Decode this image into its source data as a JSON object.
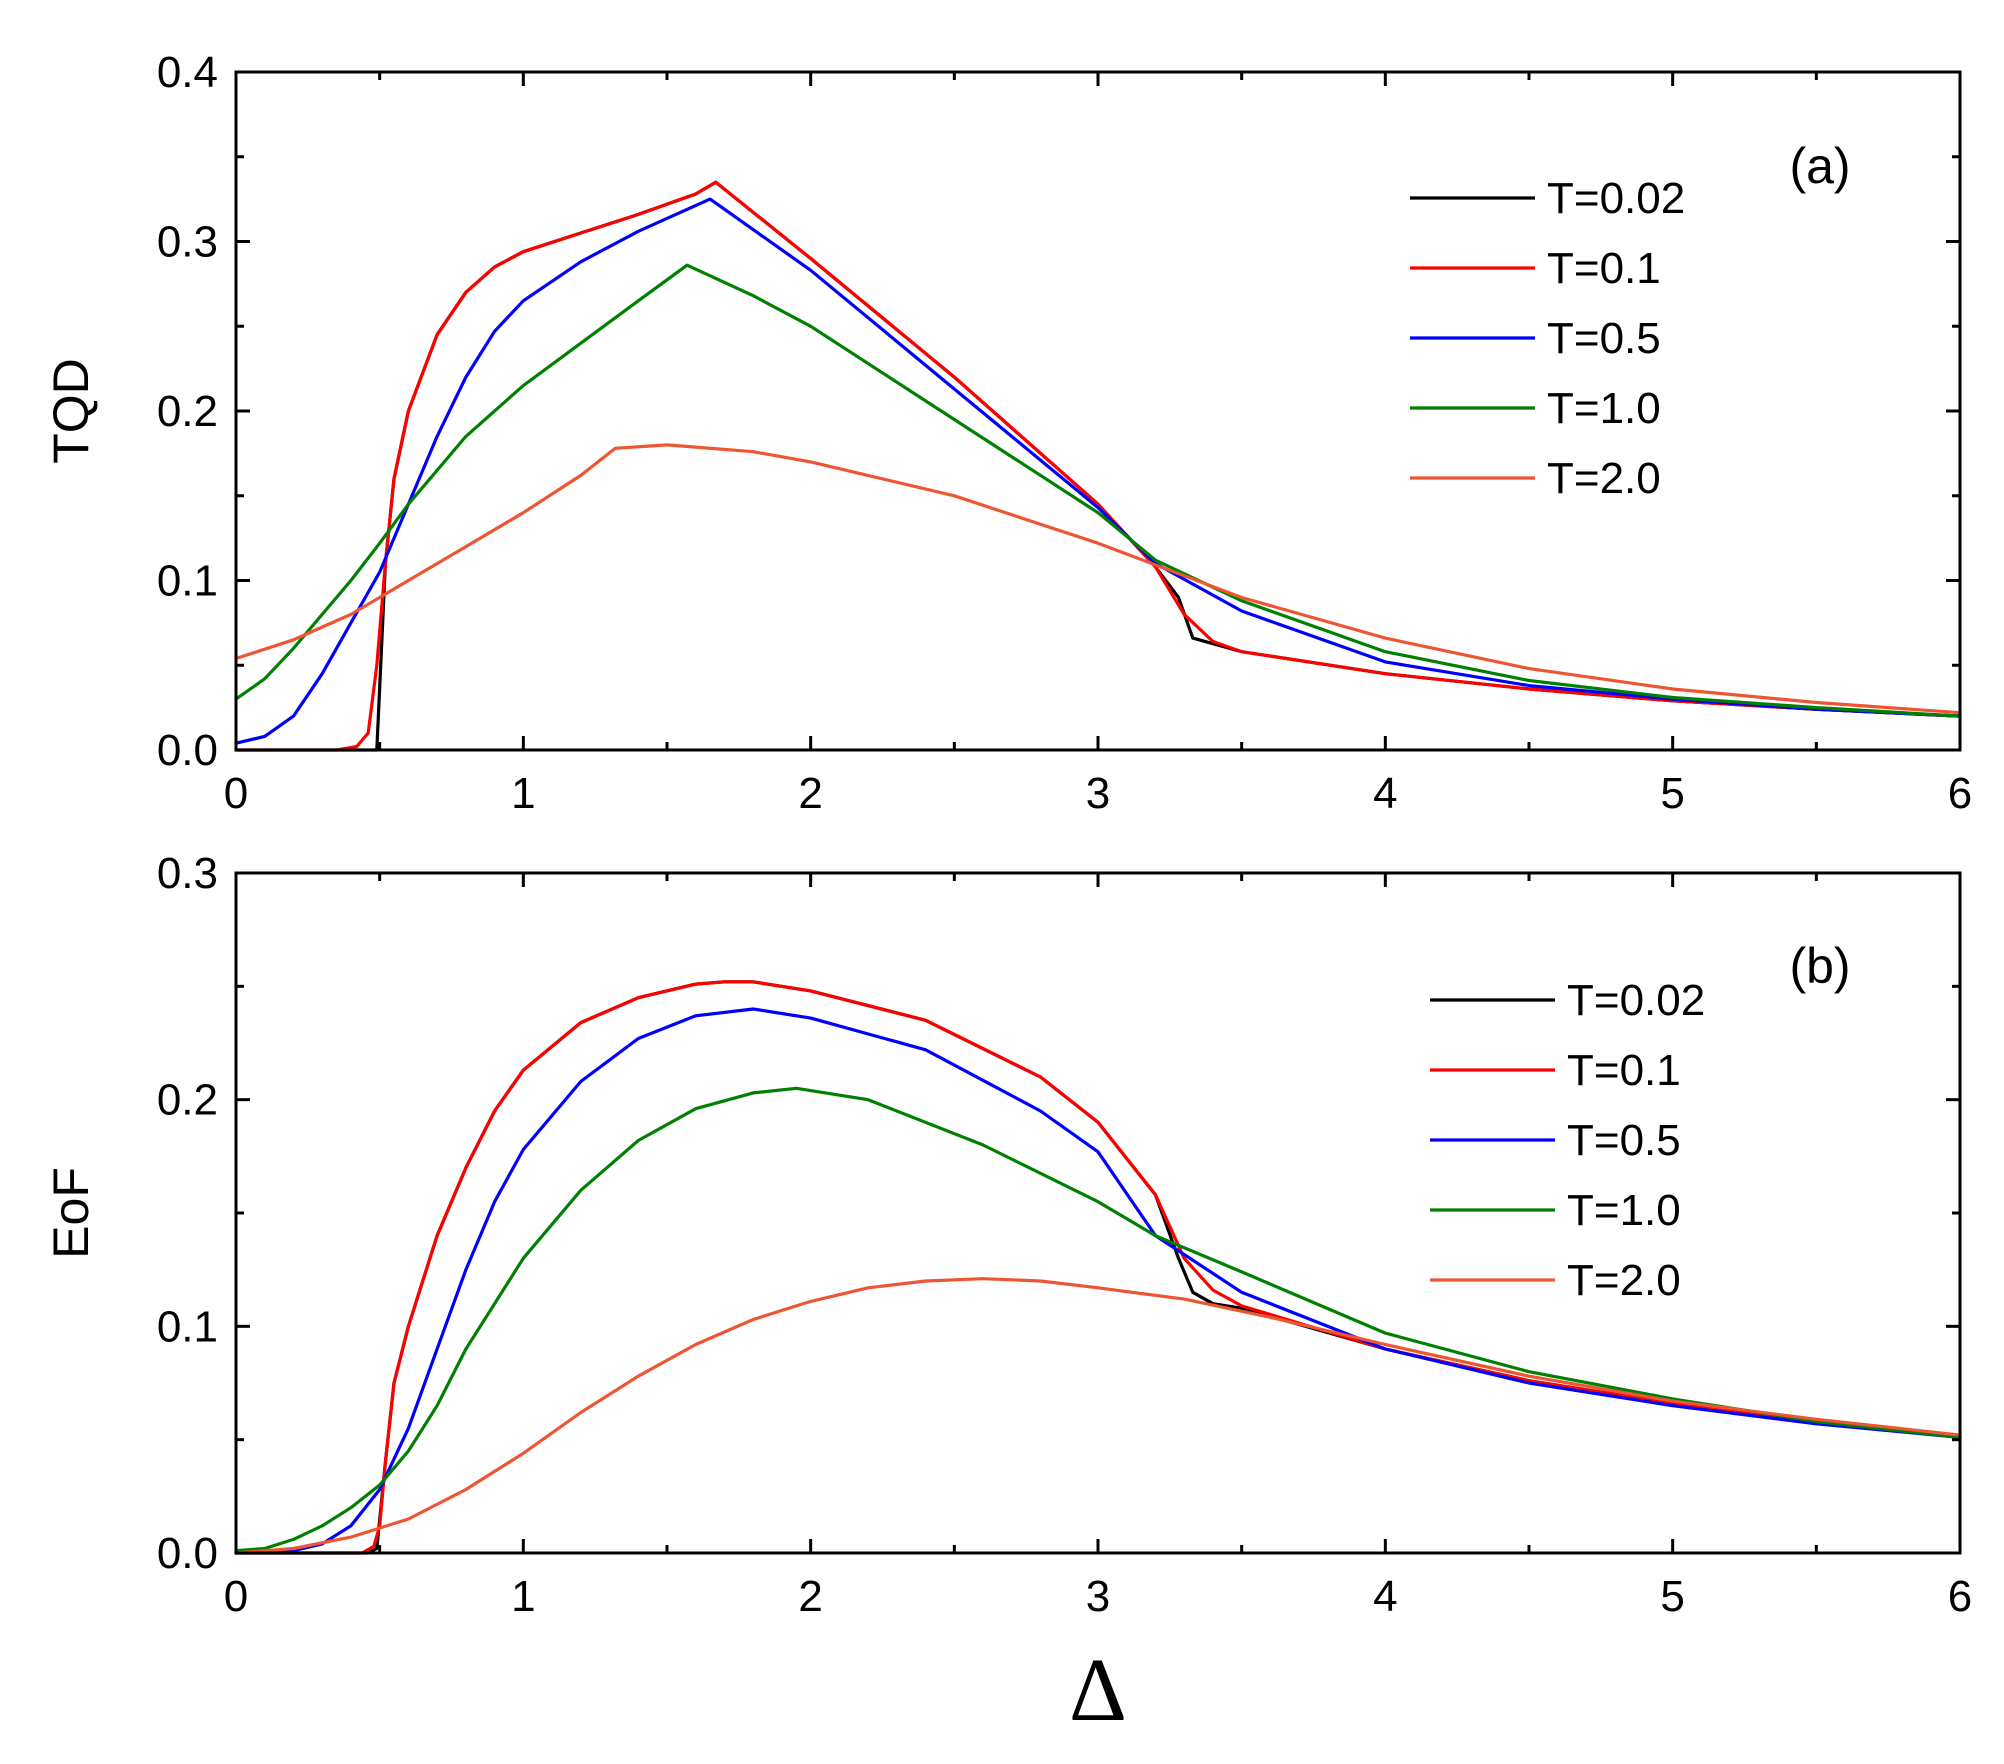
{
  "chart_data": [
    {
      "type": "line",
      "panel_label": "(a)",
      "ylabel": "TQD",
      "xlim": [
        0,
        6
      ],
      "ylim": [
        0,
        0.4
      ],
      "xticks": [
        "0",
        "1",
        "2",
        "3",
        "4",
        "5",
        "6"
      ],
      "yticks": [
        "0.0",
        "0.1",
        "0.2",
        "0.3",
        "0.4"
      ],
      "legend_position": "top-right",
      "series": [
        {
          "name": "T=0.02",
          "color": "#000000",
          "points": [
            [
              0,
              0
            ],
            [
              0.45,
              0
            ],
            [
              0.49,
              0
            ],
            [
              0.52,
              0.11
            ],
            [
              0.55,
              0.16
            ],
            [
              0.6,
              0.2
            ],
            [
              0.7,
              0.245
            ],
            [
              0.8,
              0.27
            ],
            [
              0.9,
              0.285
            ],
            [
              1.0,
              0.294
            ],
            [
              1.2,
              0.305
            ],
            [
              1.4,
              0.316
            ],
            [
              1.6,
              0.328
            ],
            [
              1.67,
              0.335
            ],
            [
              2.0,
              0.29
            ],
            [
              2.5,
              0.22
            ],
            [
              3.0,
              0.145
            ],
            [
              3.2,
              0.108
            ],
            [
              3.28,
              0.09
            ],
            [
              3.33,
              0.066
            ],
            [
              3.5,
              0.058
            ],
            [
              4.0,
              0.045
            ],
            [
              4.5,
              0.036
            ],
            [
              5.0,
              0.029
            ],
            [
              5.5,
              0.024
            ],
            [
              6.0,
              0.02
            ]
          ]
        },
        {
          "name": "T=0.1",
          "color": "#ff0000",
          "points": [
            [
              0,
              0
            ],
            [
              0.35,
              0
            ],
            [
              0.42,
              0.002
            ],
            [
              0.46,
              0.01
            ],
            [
              0.49,
              0.05
            ],
            [
              0.52,
              0.11
            ],
            [
              0.55,
              0.16
            ],
            [
              0.6,
              0.2
            ],
            [
              0.7,
              0.245
            ],
            [
              0.8,
              0.27
            ],
            [
              0.9,
              0.285
            ],
            [
              1.0,
              0.294
            ],
            [
              1.2,
              0.305
            ],
            [
              1.4,
              0.316
            ],
            [
              1.6,
              0.328
            ],
            [
              1.67,
              0.335
            ],
            [
              2.0,
              0.29
            ],
            [
              2.5,
              0.22
            ],
            [
              3.0,
              0.145
            ],
            [
              3.2,
              0.108
            ],
            [
              3.3,
              0.08
            ],
            [
              3.4,
              0.064
            ],
            [
              3.5,
              0.058
            ],
            [
              4.0,
              0.045
            ],
            [
              4.5,
              0.036
            ],
            [
              5.0,
              0.029
            ],
            [
              5.5,
              0.024
            ],
            [
              6.0,
              0.02
            ]
          ]
        },
        {
          "name": "T=0.5",
          "color": "#0000ff",
          "points": [
            [
              0,
              0.004
            ],
            [
              0.1,
              0.008
            ],
            [
              0.2,
              0.02
            ],
            [
              0.3,
              0.045
            ],
            [
              0.4,
              0.075
            ],
            [
              0.5,
              0.105
            ],
            [
              0.6,
              0.145
            ],
            [
              0.7,
              0.185
            ],
            [
              0.8,
              0.22
            ],
            [
              0.9,
              0.247
            ],
            [
              1.0,
              0.265
            ],
            [
              1.2,
              0.288
            ],
            [
              1.4,
              0.306
            ],
            [
              1.65,
              0.325
            ],
            [
              2.0,
              0.283
            ],
            [
              2.5,
              0.213
            ],
            [
              3.0,
              0.143
            ],
            [
              3.2,
              0.11
            ],
            [
              3.5,
              0.082
            ],
            [
              4.0,
              0.052
            ],
            [
              4.5,
              0.038
            ],
            [
              5.0,
              0.03
            ],
            [
              5.5,
              0.024
            ],
            [
              6.0,
              0.02
            ]
          ]
        },
        {
          "name": "T=1.0",
          "color": "#008000",
          "points": [
            [
              0,
              0.03
            ],
            [
              0.1,
              0.042
            ],
            [
              0.2,
              0.06
            ],
            [
              0.3,
              0.08
            ],
            [
              0.4,
              0.1
            ],
            [
              0.5,
              0.122
            ],
            [
              0.6,
              0.145
            ],
            [
              0.8,
              0.185
            ],
            [
              1.0,
              0.215
            ],
            [
              1.2,
              0.24
            ],
            [
              1.4,
              0.265
            ],
            [
              1.57,
              0.286
            ],
            [
              1.8,
              0.268
            ],
            [
              2.0,
              0.25
            ],
            [
              2.5,
              0.195
            ],
            [
              3.0,
              0.14
            ],
            [
              3.2,
              0.112
            ],
            [
              3.5,
              0.088
            ],
            [
              4.0,
              0.058
            ],
            [
              4.5,
              0.041
            ],
            [
              5.0,
              0.031
            ],
            [
              5.5,
              0.025
            ],
            [
              6.0,
              0.02
            ]
          ]
        },
        {
          "name": "T=2.0",
          "color": "#ee5533",
          "points": [
            [
              0,
              0.054
            ],
            [
              0.2,
              0.065
            ],
            [
              0.4,
              0.08
            ],
            [
              0.6,
              0.1
            ],
            [
              0.8,
              0.12
            ],
            [
              1.0,
              0.14
            ],
            [
              1.2,
              0.162
            ],
            [
              1.32,
              0.178
            ],
            [
              1.5,
              0.18
            ],
            [
              1.8,
              0.176
            ],
            [
              2.0,
              0.17
            ],
            [
              2.5,
              0.15
            ],
            [
              3.0,
              0.122
            ],
            [
              3.5,
              0.09
            ],
            [
              4.0,
              0.066
            ],
            [
              4.5,
              0.048
            ],
            [
              5.0,
              0.036
            ],
            [
              5.5,
              0.028
            ],
            [
              6.0,
              0.022
            ]
          ]
        }
      ]
    },
    {
      "type": "line",
      "panel_label": "(b)",
      "ylabel": "EoF",
      "xlabel": "Δ",
      "xlim": [
        0,
        6
      ],
      "ylim": [
        0,
        0.3
      ],
      "xticks": [
        "0",
        "1",
        "2",
        "3",
        "4",
        "5",
        "6"
      ],
      "yticks": [
        "0.0",
        "0.1",
        "0.2",
        "0.3"
      ],
      "legend_position": "top-right",
      "series": [
        {
          "name": "T=0.02",
          "color": "#000000",
          "points": [
            [
              0,
              0
            ],
            [
              0.46,
              0
            ],
            [
              0.49,
              0.002
            ],
            [
              0.52,
              0.04
            ],
            [
              0.55,
              0.075
            ],
            [
              0.6,
              0.1
            ],
            [
              0.7,
              0.14
            ],
            [
              0.8,
              0.17
            ],
            [
              0.9,
              0.195
            ],
            [
              1.0,
              0.213
            ],
            [
              1.2,
              0.234
            ],
            [
              1.4,
              0.245
            ],
            [
              1.6,
              0.251
            ],
            [
              1.7,
              0.252
            ],
            [
              1.8,
              0.252
            ],
            [
              2.0,
              0.248
            ],
            [
              2.4,
              0.235
            ],
            [
              2.8,
              0.21
            ],
            [
              3.0,
              0.19
            ],
            [
              3.2,
              0.158
            ],
            [
              3.28,
              0.13
            ],
            [
              3.33,
              0.115
            ],
            [
              3.4,
              0.11
            ],
            [
              3.5,
              0.108
            ],
            [
              4.0,
              0.09
            ],
            [
              4.5,
              0.076
            ],
            [
              5.0,
              0.066
            ],
            [
              5.5,
              0.058
            ],
            [
              6.0,
              0.051
            ]
          ]
        },
        {
          "name": "T=0.1",
          "color": "#ff0000",
          "points": [
            [
              0,
              0
            ],
            [
              0.44,
              0
            ],
            [
              0.48,
              0.003
            ],
            [
              0.5,
              0.012
            ],
            [
              0.52,
              0.04
            ],
            [
              0.55,
              0.075
            ],
            [
              0.6,
              0.1
            ],
            [
              0.7,
              0.14
            ],
            [
              0.8,
              0.17
            ],
            [
              0.9,
              0.195
            ],
            [
              1.0,
              0.213
            ],
            [
              1.2,
              0.234
            ],
            [
              1.4,
              0.245
            ],
            [
              1.6,
              0.251
            ],
            [
              1.7,
              0.252
            ],
            [
              1.8,
              0.252
            ],
            [
              2.0,
              0.248
            ],
            [
              2.4,
              0.235
            ],
            [
              2.8,
              0.21
            ],
            [
              3.0,
              0.19
            ],
            [
              3.2,
              0.158
            ],
            [
              3.3,
              0.13
            ],
            [
              3.4,
              0.116
            ],
            [
              3.5,
              0.109
            ],
            [
              4.0,
              0.09
            ],
            [
              4.5,
              0.076
            ],
            [
              5.0,
              0.066
            ],
            [
              5.5,
              0.058
            ],
            [
              6.0,
              0.051
            ]
          ]
        },
        {
          "name": "T=0.5",
          "color": "#0000ff",
          "points": [
            [
              0,
              0
            ],
            [
              0.2,
              0.001
            ],
            [
              0.3,
              0.004
            ],
            [
              0.4,
              0.012
            ],
            [
              0.5,
              0.028
            ],
            [
              0.6,
              0.055
            ],
            [
              0.7,
              0.09
            ],
            [
              0.8,
              0.125
            ],
            [
              0.9,
              0.155
            ],
            [
              1.0,
              0.178
            ],
            [
              1.2,
              0.208
            ],
            [
              1.4,
              0.227
            ],
            [
              1.6,
              0.237
            ],
            [
              1.8,
              0.24
            ],
            [
              2.0,
              0.236
            ],
            [
              2.4,
              0.222
            ],
            [
              2.8,
              0.195
            ],
            [
              3.0,
              0.177
            ],
            [
              3.2,
              0.14
            ],
            [
              3.5,
              0.115
            ],
            [
              4.0,
              0.09
            ],
            [
              4.5,
              0.075
            ],
            [
              5.0,
              0.065
            ],
            [
              5.5,
              0.057
            ],
            [
              6.0,
              0.051
            ]
          ]
        },
        {
          "name": "T=1.0",
          "color": "#008000",
          "points": [
            [
              0,
              0.001
            ],
            [
              0.1,
              0.002
            ],
            [
              0.2,
              0.006
            ],
            [
              0.3,
              0.012
            ],
            [
              0.4,
              0.02
            ],
            [
              0.5,
              0.03
            ],
            [
              0.6,
              0.045
            ],
            [
              0.7,
              0.065
            ],
            [
              0.8,
              0.09
            ],
            [
              0.9,
              0.11
            ],
            [
              1.0,
              0.13
            ],
            [
              1.2,
              0.16
            ],
            [
              1.4,
              0.182
            ],
            [
              1.6,
              0.196
            ],
            [
              1.8,
              0.203
            ],
            [
              1.95,
              0.205
            ],
            [
              2.2,
              0.2
            ],
            [
              2.6,
              0.18
            ],
            [
              3.0,
              0.155
            ],
            [
              3.2,
              0.14
            ],
            [
              3.5,
              0.124
            ],
            [
              4.0,
              0.097
            ],
            [
              4.5,
              0.08
            ],
            [
              5.0,
              0.068
            ],
            [
              5.5,
              0.058
            ],
            [
              6.0,
              0.051
            ]
          ]
        },
        {
          "name": "T=2.0",
          "color": "#ee5533",
          "points": [
            [
              0,
              0
            ],
            [
              0.2,
              0.002
            ],
            [
              0.4,
              0.007
            ],
            [
              0.6,
              0.015
            ],
            [
              0.8,
              0.028
            ],
            [
              1.0,
              0.044
            ],
            [
              1.2,
              0.062
            ],
            [
              1.4,
              0.078
            ],
            [
              1.6,
              0.092
            ],
            [
              1.8,
              0.103
            ],
            [
              2.0,
              0.111
            ],
            [
              2.2,
              0.117
            ],
            [
              2.4,
              0.12
            ],
            [
              2.6,
              0.121
            ],
            [
              2.8,
              0.12
            ],
            [
              3.0,
              0.117
            ],
            [
              3.3,
              0.112
            ],
            [
              3.6,
              0.104
            ],
            [
              4.0,
              0.092
            ],
            [
              4.5,
              0.078
            ],
            [
              5.0,
              0.067
            ],
            [
              5.5,
              0.059
            ],
            [
              6.0,
              0.052
            ]
          ]
        }
      ]
    }
  ]
}
